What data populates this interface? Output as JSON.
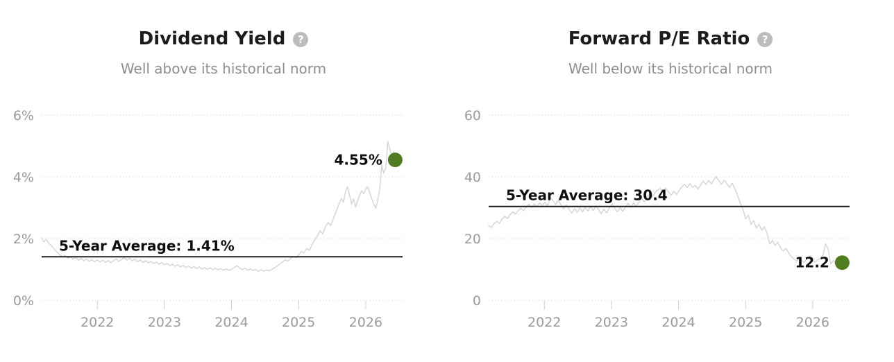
{
  "colors": {
    "series_line": "#d6d6d6",
    "average_line": "#1f1f1f",
    "current_dot": "#4f7d20",
    "grid": "#dadada",
    "axis_text": "#9b9b9b",
    "title_text": "#1c1c1c",
    "subtitle_text": "#8e8e8e"
  },
  "help_icon_glyph": "?",
  "chart_data": [
    {
      "type": "line",
      "title": "Dividend Yield",
      "subtitle": "Well above its historical norm",
      "xlabel": "",
      "ylabel": "",
      "grid": "dotted-horizontal",
      "legend": "none",
      "xlim": [
        2021.17,
        2026.55
      ],
      "ylim": [
        0,
        6
      ],
      "yticks": [
        {
          "value": 0,
          "label": "0%"
        },
        {
          "value": 2,
          "label": "2%"
        },
        {
          "value": 4,
          "label": "4%"
        },
        {
          "value": 6,
          "label": "6%"
        }
      ],
      "xticks": [
        {
          "value": 2022,
          "label": "2022"
        },
        {
          "value": 2023,
          "label": "2023"
        },
        {
          "value": 2024,
          "label": "2024"
        },
        {
          "value": 2025,
          "label": "2025"
        },
        {
          "value": 2026,
          "label": "2026"
        }
      ],
      "average": {
        "value": 1.41,
        "label": "5-Year Average: 1.41%"
      },
      "current": {
        "x": 2026.44,
        "value": 4.55,
        "label": "4.55%"
      },
      "series": [
        [
          2021.17,
          2.02
        ],
        [
          2021.2,
          1.9
        ],
        [
          2021.24,
          1.97
        ],
        [
          2021.28,
          1.84
        ],
        [
          2021.32,
          1.76
        ],
        [
          2021.36,
          1.66
        ],
        [
          2021.4,
          1.56
        ],
        [
          2021.44,
          1.48
        ],
        [
          2021.48,
          1.41
        ],
        [
          2021.52,
          1.45
        ],
        [
          2021.56,
          1.36
        ],
        [
          2021.6,
          1.41
        ],
        [
          2021.64,
          1.33
        ],
        [
          2021.68,
          1.39
        ],
        [
          2021.72,
          1.3
        ],
        [
          2021.76,
          1.36
        ],
        [
          2021.8,
          1.28
        ],
        [
          2021.84,
          1.34
        ],
        [
          2021.88,
          1.26
        ],
        [
          2021.92,
          1.32
        ],
        [
          2021.96,
          1.25
        ],
        [
          2022.0,
          1.31
        ],
        [
          2022.04,
          1.24
        ],
        [
          2022.08,
          1.3
        ],
        [
          2022.12,
          1.23
        ],
        [
          2022.16,
          1.29
        ],
        [
          2022.2,
          1.22
        ],
        [
          2022.24,
          1.28
        ],
        [
          2022.28,
          1.34
        ],
        [
          2022.32,
          1.26
        ],
        [
          2022.36,
          1.32
        ],
        [
          2022.4,
          1.38
        ],
        [
          2022.44,
          1.3
        ],
        [
          2022.48,
          1.36
        ],
        [
          2022.52,
          1.28
        ],
        [
          2022.56,
          1.33
        ],
        [
          2022.6,
          1.25
        ],
        [
          2022.64,
          1.31
        ],
        [
          2022.68,
          1.23
        ],
        [
          2022.72,
          1.28
        ],
        [
          2022.76,
          1.21
        ],
        [
          2022.8,
          1.26
        ],
        [
          2022.84,
          1.19
        ],
        [
          2022.88,
          1.24
        ],
        [
          2022.92,
          1.17
        ],
        [
          2022.96,
          1.22
        ],
        [
          2023.0,
          1.15
        ],
        [
          2023.04,
          1.2
        ],
        [
          2023.08,
          1.12
        ],
        [
          2023.12,
          1.17
        ],
        [
          2023.16,
          1.1
        ],
        [
          2023.2,
          1.15
        ],
        [
          2023.24,
          1.08
        ],
        [
          2023.28,
          1.13
        ],
        [
          2023.32,
          1.06
        ],
        [
          2023.36,
          1.11
        ],
        [
          2023.4,
          1.04
        ],
        [
          2023.44,
          1.09
        ],
        [
          2023.48,
          1.03
        ],
        [
          2023.52,
          1.08
        ],
        [
          2023.56,
          1.01
        ],
        [
          2023.6,
          1.06
        ],
        [
          2023.64,
          1.0
        ],
        [
          2023.68,
          1.05
        ],
        [
          2023.72,
          0.99
        ],
        [
          2023.76,
          1.04
        ],
        [
          2023.8,
          0.98
        ],
        [
          2023.84,
          1.03
        ],
        [
          2023.88,
          0.97
        ],
        [
          2023.92,
          1.02
        ],
        [
          2023.96,
          0.96
        ],
        [
          2024.0,
          1.01
        ],
        [
          2024.04,
          1.06
        ],
        [
          2024.08,
          1.12
        ],
        [
          2024.12,
          1.05
        ],
        [
          2024.16,
          0.99
        ],
        [
          2024.2,
          1.04
        ],
        [
          2024.24,
          0.97
        ],
        [
          2024.28,
          1.02
        ],
        [
          2024.32,
          0.96
        ],
        [
          2024.36,
          1.0
        ],
        [
          2024.4,
          0.94
        ],
        [
          2024.44,
          0.99
        ],
        [
          2024.48,
          0.94
        ],
        [
          2024.52,
          0.98
        ],
        [
          2024.56,
          0.95
        ],
        [
          2024.6,
          1.0
        ],
        [
          2024.64,
          1.05
        ],
        [
          2024.68,
          1.11
        ],
        [
          2024.72,
          1.17
        ],
        [
          2024.76,
          1.24
        ],
        [
          2024.8,
          1.31
        ],
        [
          2024.84,
          1.27
        ],
        [
          2024.88,
          1.35
        ],
        [
          2024.92,
          1.42
        ],
        [
          2024.96,
          1.38
        ],
        [
          2025.0,
          1.47
        ],
        [
          2025.04,
          1.58
        ],
        [
          2025.08,
          1.53
        ],
        [
          2025.12,
          1.68
        ],
        [
          2025.16,
          1.62
        ],
        [
          2025.2,
          1.8
        ],
        [
          2025.24,
          1.95
        ],
        [
          2025.28,
          2.08
        ],
        [
          2025.32,
          2.25
        ],
        [
          2025.36,
          2.15
        ],
        [
          2025.4,
          2.38
        ],
        [
          2025.44,
          2.52
        ],
        [
          2025.48,
          2.42
        ],
        [
          2025.52,
          2.65
        ],
        [
          2025.56,
          2.88
        ],
        [
          2025.6,
          3.1
        ],
        [
          2025.64,
          3.3
        ],
        [
          2025.67,
          3.18
        ],
        [
          2025.7,
          3.52
        ],
        [
          2025.73,
          3.68
        ],
        [
          2025.76,
          3.4
        ],
        [
          2025.79,
          3.12
        ],
        [
          2025.82,
          3.28
        ],
        [
          2025.85,
          3.02
        ],
        [
          2025.88,
          3.22
        ],
        [
          2025.91,
          3.4
        ],
        [
          2025.94,
          3.55
        ],
        [
          2025.97,
          3.45
        ],
        [
          2026.0,
          3.6
        ],
        [
          2026.03,
          3.68
        ],
        [
          2026.06,
          3.48
        ],
        [
          2026.09,
          3.3
        ],
        [
          2026.12,
          3.12
        ],
        [
          2026.15,
          2.98
        ],
        [
          2026.18,
          3.25
        ],
        [
          2026.21,
          3.6
        ],
        [
          2026.24,
          4.38
        ],
        [
          2026.27,
          4.12
        ],
        [
          2026.3,
          4.28
        ],
        [
          2026.33,
          5.15
        ],
        [
          2026.36,
          4.88
        ],
        [
          2026.39,
          4.72
        ],
        [
          2026.42,
          4.82
        ],
        [
          2026.44,
          4.55
        ]
      ]
    },
    {
      "type": "line",
      "title": "Forward P/E Ratio",
      "subtitle": "Well below its historical norm",
      "xlabel": "",
      "ylabel": "",
      "grid": "dotted-horizontal",
      "legend": "none",
      "xlim": [
        2021.17,
        2026.55
      ],
      "ylim": [
        0,
        60
      ],
      "yticks": [
        {
          "value": 0,
          "label": "0"
        },
        {
          "value": 20,
          "label": "20"
        },
        {
          "value": 40,
          "label": "40"
        },
        {
          "value": 60,
          "label": "60"
        }
      ],
      "xticks": [
        {
          "value": 2022,
          "label": "2022"
        },
        {
          "value": 2023,
          "label": "2023"
        },
        {
          "value": 2024,
          "label": "2024"
        },
        {
          "value": 2025,
          "label": "2025"
        },
        {
          "value": 2026,
          "label": "2026"
        }
      ],
      "average": {
        "value": 30.4,
        "label": "5-Year Average: 30.4"
      },
      "current": {
        "x": 2026.44,
        "value": 12.2,
        "label": "12.2"
      },
      "series": [
        [
          2021.17,
          24.2
        ],
        [
          2021.21,
          23.6
        ],
        [
          2021.25,
          24.8
        ],
        [
          2021.29,
          25.6
        ],
        [
          2021.33,
          24.9
        ],
        [
          2021.37,
          26.3
        ],
        [
          2021.41,
          27.2
        ],
        [
          2021.45,
          26.5
        ],
        [
          2021.49,
          27.8
        ],
        [
          2021.53,
          28.6
        ],
        [
          2021.57,
          27.9
        ],
        [
          2021.61,
          29.0
        ],
        [
          2021.65,
          29.8
        ],
        [
          2021.69,
          29.0
        ],
        [
          2021.73,
          30.3
        ],
        [
          2021.77,
          31.1
        ],
        [
          2021.81,
          30.0
        ],
        [
          2021.85,
          31.3
        ],
        [
          2021.89,
          30.2
        ],
        [
          2021.93,
          31.6
        ],
        [
          2021.97,
          30.6
        ],
        [
          2022.01,
          31.8
        ],
        [
          2022.05,
          30.5
        ],
        [
          2022.09,
          33.4
        ],
        [
          2022.13,
          32.2
        ],
        [
          2022.17,
          31.0
        ],
        [
          2022.21,
          32.4
        ],
        [
          2022.25,
          30.8
        ],
        [
          2022.29,
          29.6
        ],
        [
          2022.33,
          30.9
        ],
        [
          2022.37,
          29.4
        ],
        [
          2022.41,
          28.3
        ],
        [
          2022.45,
          29.7
        ],
        [
          2022.49,
          28.5
        ],
        [
          2022.53,
          29.9
        ],
        [
          2022.57,
          28.7
        ],
        [
          2022.61,
          30.1
        ],
        [
          2022.65,
          28.9
        ],
        [
          2022.69,
          30.4
        ],
        [
          2022.73,
          29.1
        ],
        [
          2022.77,
          30.6
        ],
        [
          2022.81,
          29.3
        ],
        [
          2022.85,
          28.1
        ],
        [
          2022.89,
          29.5
        ],
        [
          2022.93,
          28.3
        ],
        [
          2022.97,
          30.0
        ],
        [
          2023.01,
          31.2
        ],
        [
          2023.05,
          29.8
        ],
        [
          2023.09,
          28.6
        ],
        [
          2023.13,
          30.0
        ],
        [
          2023.17,
          28.8
        ],
        [
          2023.21,
          30.2
        ],
        [
          2023.25,
          31.4
        ],
        [
          2023.29,
          30.1
        ],
        [
          2023.33,
          31.6
        ],
        [
          2023.37,
          30.4
        ],
        [
          2023.41,
          31.8
        ],
        [
          2023.45,
          33.0
        ],
        [
          2023.49,
          31.9
        ],
        [
          2023.53,
          33.4
        ],
        [
          2023.57,
          34.6
        ],
        [
          2023.61,
          33.5
        ],
        [
          2023.65,
          34.9
        ],
        [
          2023.69,
          35.8
        ],
        [
          2023.73,
          36.2
        ],
        [
          2023.77,
          35.0
        ],
        [
          2023.81,
          36.4
        ],
        [
          2023.85,
          35.2
        ],
        [
          2023.89,
          34.0
        ],
        [
          2023.93,
          35.4
        ],
        [
          2023.97,
          34.2
        ],
        [
          2024.01,
          35.6
        ],
        [
          2024.05,
          36.8
        ],
        [
          2024.09,
          37.6
        ],
        [
          2024.13,
          36.5
        ],
        [
          2024.17,
          37.8
        ],
        [
          2024.21,
          36.6
        ],
        [
          2024.25,
          37.2
        ],
        [
          2024.29,
          36.0
        ],
        [
          2024.33,
          37.4
        ],
        [
          2024.37,
          38.6
        ],
        [
          2024.41,
          37.5
        ],
        [
          2024.45,
          38.8
        ],
        [
          2024.49,
          37.7
        ],
        [
          2024.53,
          39.2
        ],
        [
          2024.56,
          40.0
        ],
        [
          2024.6,
          38.8
        ],
        [
          2024.64,
          37.6
        ],
        [
          2024.68,
          38.9
        ],
        [
          2024.72,
          37.8
        ],
        [
          2024.76,
          36.6
        ],
        [
          2024.8,
          37.9
        ],
        [
          2024.84,
          36.2
        ],
        [
          2024.88,
          34.0
        ],
        [
          2024.92,
          31.5
        ],
        [
          2024.96,
          29.6
        ],
        [
          2025.0,
          26.4
        ],
        [
          2025.04,
          27.6
        ],
        [
          2025.08,
          24.6
        ],
        [
          2025.12,
          25.8
        ],
        [
          2025.16,
          23.4
        ],
        [
          2025.2,
          24.6
        ],
        [
          2025.24,
          22.7
        ],
        [
          2025.28,
          23.8
        ],
        [
          2025.32,
          21.8
        ],
        [
          2025.36,
          18.2
        ],
        [
          2025.4,
          19.4
        ],
        [
          2025.44,
          17.8
        ],
        [
          2025.48,
          18.8
        ],
        [
          2025.52,
          17.0
        ],
        [
          2025.56,
          16.0
        ],
        [
          2025.6,
          16.8
        ],
        [
          2025.64,
          15.4
        ],
        [
          2025.68,
          14.2
        ],
        [
          2025.72,
          13.4
        ],
        [
          2025.76,
          12.6
        ],
        [
          2025.8,
          13.8
        ],
        [
          2025.84,
          12.8
        ],
        [
          2025.88,
          12.4
        ],
        [
          2025.92,
          13.6
        ],
        [
          2025.96,
          14.4
        ],
        [
          2026.0,
          12.8
        ],
        [
          2026.04,
          12.4
        ],
        [
          2026.08,
          13.2
        ],
        [
          2026.12,
          13.6
        ],
        [
          2026.16,
          15.0
        ],
        [
          2026.19,
          18.3
        ],
        [
          2026.23,
          16.6
        ],
        [
          2026.27,
          11.8
        ],
        [
          2026.31,
          13.0
        ],
        [
          2026.35,
          11.6
        ],
        [
          2026.39,
          12.9
        ],
        [
          2026.42,
          11.8
        ],
        [
          2026.44,
          12.2
        ]
      ]
    }
  ]
}
